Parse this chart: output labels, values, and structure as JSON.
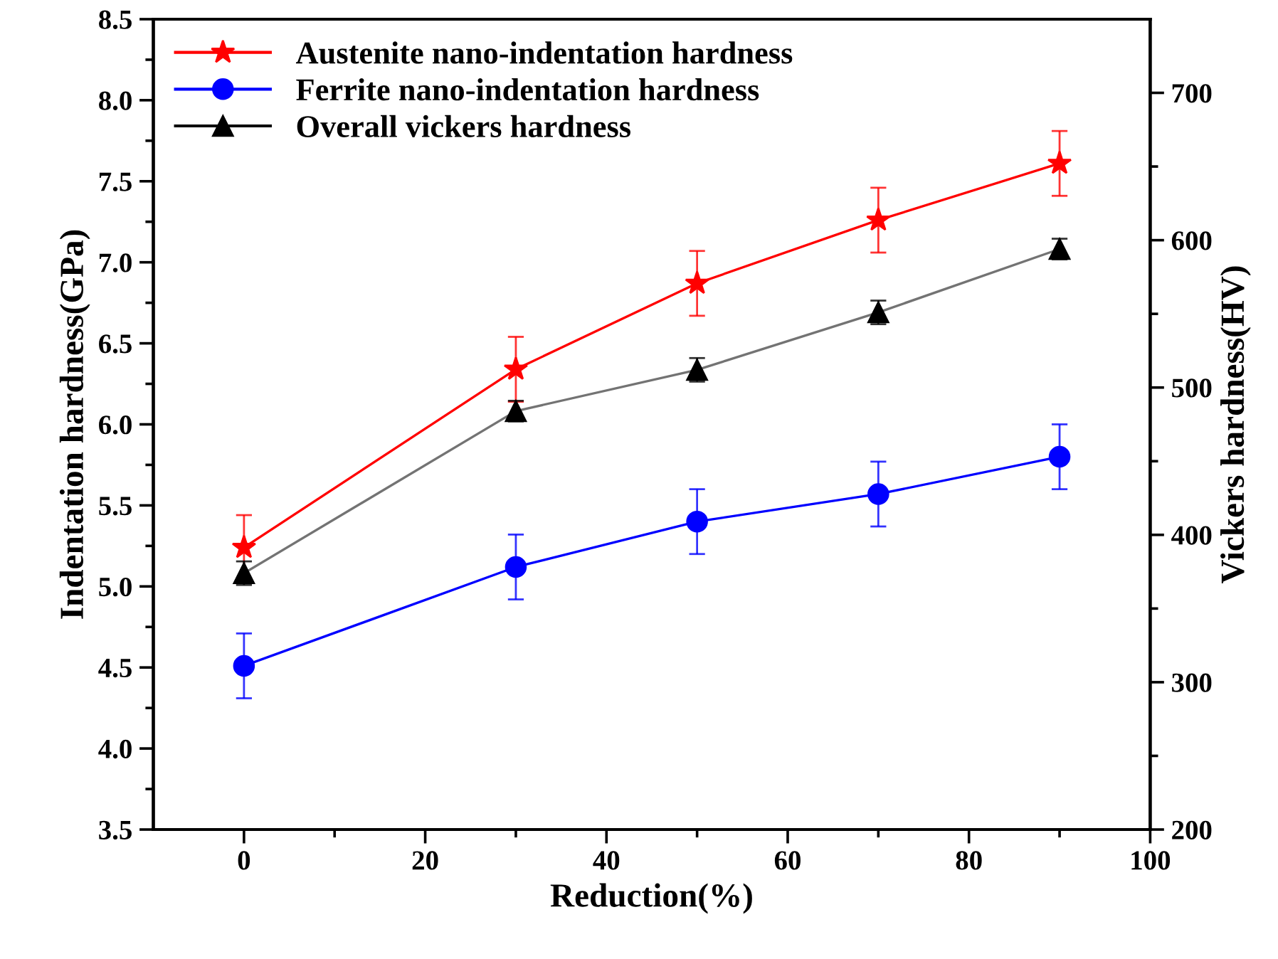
{
  "chart_data": {
    "type": "line",
    "xlabel": "Reduction(%)",
    "ylabel": "Indentation hardness(GPa)",
    "y2label": "Vickers hardness(HV)",
    "x": [
      0,
      30,
      50,
      70,
      90
    ],
    "xlim": [
      -10,
      100
    ],
    "xticks": [
      0,
      {
        "value": 10,
        "label": null
      },
      20,
      {
        "value": 30,
        "label": null
      },
      40,
      {
        "value": 50,
        "label": null
      },
      60,
      {
        "value": 70,
        "label": null
      },
      80,
      {
        "value": 90,
        "label": null
      },
      100
    ],
    "ylim": [
      3.5,
      8.5
    ],
    "yticks": [
      3.5,
      {
        "value": 3.75,
        "label": null
      },
      {
        "value": 4.0,
        "label": "4.0"
      },
      {
        "value": 4.25,
        "label": null
      },
      4.5,
      {
        "value": 4.75,
        "label": null
      },
      {
        "value": 5.0,
        "label": "5.0"
      },
      {
        "value": 5.25,
        "label": null
      },
      5.5,
      {
        "value": 5.75,
        "label": null
      },
      {
        "value": 6.0,
        "label": "6.0"
      },
      {
        "value": 6.25,
        "label": null
      },
      6.5,
      {
        "value": 6.75,
        "label": null
      },
      {
        "value": 7.0,
        "label": "7.0"
      },
      {
        "value": 7.25,
        "label": null
      },
      7.5,
      {
        "value": 7.75,
        "label": null
      },
      {
        "value": 8.0,
        "label": "8.0"
      },
      {
        "value": 8.25,
        "label": null
      },
      8.5
    ],
    "y2lim": [
      200,
      750
    ],
    "y2ticks": [
      200,
      {
        "value": 250,
        "label": null
      },
      300,
      {
        "value": 350,
        "label": null
      },
      400,
      {
        "value": 450,
        "label": null
      },
      500,
      {
        "value": 550,
        "label": null
      },
      600,
      {
        "value": 650,
        "label": null
      },
      700
    ],
    "legend": "top left",
    "grid": false,
    "series": [
      {
        "name": "Austenite nano-indentation hardness",
        "color": "#ff0000",
        "marker": "star",
        "values": [
          5.24,
          6.34,
          6.87,
          7.26,
          7.61
        ],
        "errors": [
          0.2,
          0.2,
          0.2,
          0.2,
          0.2
        ]
      },
      {
        "name": "Ferrite nano-indentation hardness",
        "color": "#0000ff",
        "marker": "circle",
        "values": [
          4.51,
          5.12,
          5.4,
          5.57,
          5.8
        ],
        "errors": [
          0.2,
          0.2,
          0.2,
          0.2,
          0.2
        ]
      },
      {
        "name": "Overall vickers hardness",
        "color": "#000000",
        "marker": "triangle",
        "axis": "y2",
        "values": [
          374,
          484,
          512,
          551,
          594
        ],
        "errors": [
          8,
          7,
          8,
          8,
          7
        ]
      }
    ]
  }
}
